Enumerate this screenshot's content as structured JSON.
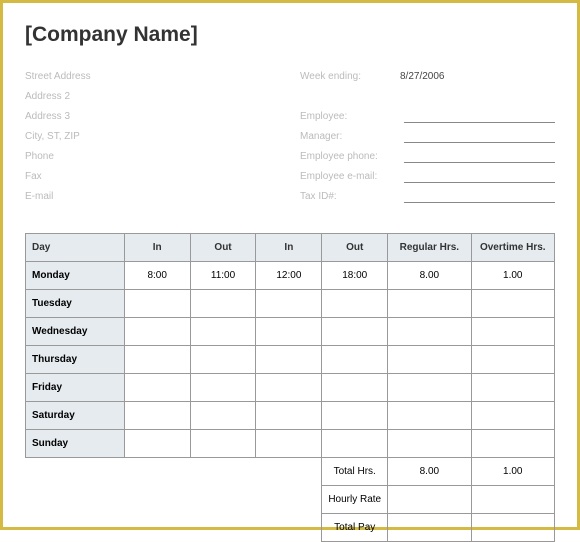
{
  "title": "[Company Name]",
  "left_fields": {
    "street": "Street Address",
    "addr2": "Address 2",
    "addr3": "Address 3",
    "csz": "City, ST, ZIP",
    "phone": "Phone",
    "fax": "Fax",
    "email": "E-mail"
  },
  "right_fields": {
    "week_ending_label": "Week ending:",
    "week_ending_value": "8/27/2006",
    "employee": "Employee:",
    "manager": "Manager:",
    "emp_phone": "Employee phone:",
    "emp_email": "Employee e-mail:",
    "tax_id": "Tax ID#:"
  },
  "table": {
    "headers": {
      "day": "Day",
      "in1": "In",
      "out1": "Out",
      "in2": "In",
      "out2": "Out",
      "regular": "Regular Hrs.",
      "overtime": "Overtime Hrs."
    },
    "rows": [
      {
        "day": "Monday",
        "in1": "8:00",
        "out1": "11:00",
        "in2": "12:00",
        "out2": "18:00",
        "reg": "8.00",
        "ot": "1.00"
      },
      {
        "day": "Tuesday",
        "in1": "",
        "out1": "",
        "in2": "",
        "out2": "",
        "reg": "",
        "ot": ""
      },
      {
        "day": "Wednesday",
        "in1": "",
        "out1": "",
        "in2": "",
        "out2": "",
        "reg": "",
        "ot": ""
      },
      {
        "day": "Thursday",
        "in1": "",
        "out1": "",
        "in2": "",
        "out2": "",
        "reg": "",
        "ot": ""
      },
      {
        "day": "Friday",
        "in1": "",
        "out1": "",
        "in2": "",
        "out2": "",
        "reg": "",
        "ot": ""
      },
      {
        "day": "Saturday",
        "in1": "",
        "out1": "",
        "in2": "",
        "out2": "",
        "reg": "",
        "ot": ""
      },
      {
        "day": "Sunday",
        "in1": "",
        "out1": "",
        "in2": "",
        "out2": "",
        "reg": "",
        "ot": ""
      }
    ],
    "totals": {
      "total_hrs_label": "Total Hrs.",
      "total_hrs_reg": "8.00",
      "total_hrs_ot": "1.00",
      "hourly_rate_label": "Hourly Rate",
      "hourly_rate_reg": "",
      "hourly_rate_ot": "",
      "total_pay_label": "Total Pay",
      "total_pay_reg": "",
      "total_pay_ot": ""
    }
  },
  "colors": {
    "border": "#d4b943",
    "header_bg": "#e5ebef",
    "faded_text": "#bbb",
    "cell_border": "#999"
  }
}
